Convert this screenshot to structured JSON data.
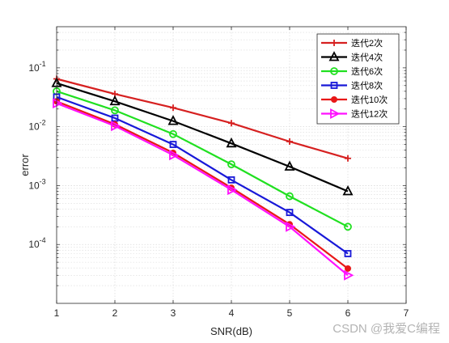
{
  "chart_data": {
    "type": "line",
    "title": "",
    "xlabel": "SNR(dB)",
    "ylabel": "error",
    "x_ticks": [
      1,
      2,
      3,
      4,
      5,
      6,
      7
    ],
    "xlim": [
      1,
      7
    ],
    "y_scale": "log",
    "ylim": [
      1e-05,
      0.5
    ],
    "y_ticks": [
      {
        "value": 0.1,
        "base": "10",
        "exp": "-1"
      },
      {
        "value": 0.01,
        "base": "10",
        "exp": "-2"
      },
      {
        "value": 0.001,
        "base": "10",
        "exp": "-3"
      },
      {
        "value": 0.0001,
        "base": "10",
        "exp": "-4"
      }
    ],
    "grid": "major and minor, dotted",
    "legend_position": "top-right",
    "x": [
      1,
      2,
      3,
      4,
      5,
      6
    ],
    "series": [
      {
        "name": "迭代2次",
        "color": "#d62020",
        "marker": "plus",
        "values": [
          0.065,
          0.036,
          0.021,
          0.0115,
          0.0056,
          0.0029
        ]
      },
      {
        "name": "迭代4次",
        "color": "#000000",
        "marker": "triangle-up",
        "values": [
          0.055,
          0.027,
          0.0125,
          0.0052,
          0.0021,
          0.0008
        ]
      },
      {
        "name": "迭代6次",
        "color": "#20e020",
        "marker": "circle",
        "values": [
          0.04,
          0.019,
          0.0075,
          0.0023,
          0.00066,
          0.0002
        ]
      },
      {
        "name": "迭代8次",
        "color": "#1818d8",
        "marker": "square",
        "values": [
          0.032,
          0.014,
          0.005,
          0.00125,
          0.00035,
          7e-05
        ]
      },
      {
        "name": "迭代10次",
        "color": "#e81818",
        "marker": "dot",
        "values": [
          0.027,
          0.011,
          0.0036,
          0.00092,
          0.00022,
          3.9e-05
        ]
      },
      {
        "name": "迭代12次",
        "color": "#ff10ff",
        "marker": "triangle-right",
        "values": [
          0.025,
          0.0103,
          0.0033,
          0.00085,
          0.0002,
          3e-05
        ]
      }
    ]
  },
  "watermark": {
    "text": "CSDN @我爱C编程"
  }
}
